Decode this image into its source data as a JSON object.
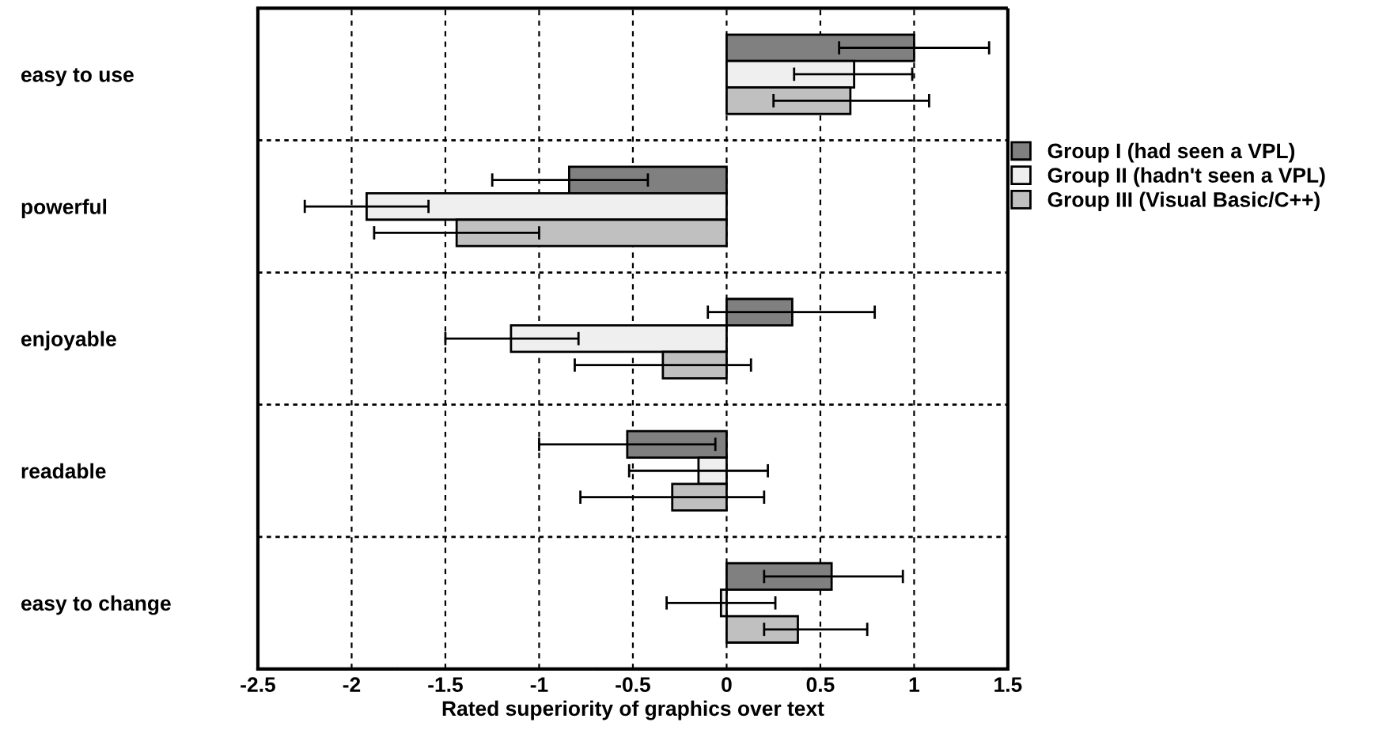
{
  "chart_data": {
    "type": "bar",
    "orientation": "horizontal",
    "xlabel": "Rated superiority of graphics over text",
    "categories": [
      "easy to use",
      "powerful",
      "enjoyable",
      "readable",
      "easy to change"
    ],
    "series": [
      {
        "name": "Group I (had seen a VPL)",
        "color": "#808080",
        "values": [
          1.0,
          -0.84,
          0.35,
          -0.53,
          0.56
        ],
        "errors": [
          [
            0.6,
            1.4
          ],
          [
            -1.25,
            -0.42
          ],
          [
            -0.1,
            0.79
          ],
          [
            -1.0,
            -0.06
          ],
          [
            0.2,
            0.94
          ]
        ]
      },
      {
        "name": "Group II (hadn't seen a VPL)",
        "color": "#efefef",
        "values": [
          0.68,
          -1.92,
          -1.15,
          -0.15,
          -0.03
        ],
        "errors": [
          [
            0.36,
            0.99
          ],
          [
            -2.25,
            -1.59
          ],
          [
            -1.5,
            -0.79
          ],
          [
            -0.52,
            0.22
          ],
          [
            -0.32,
            0.26
          ]
        ]
      },
      {
        "name": "Group III (Visual Basic/C++)",
        "color": "#c0c0c0",
        "values": [
          0.66,
          -1.44,
          -0.34,
          -0.29,
          0.38
        ],
        "errors": [
          [
            0.25,
            1.08
          ],
          [
            -1.88,
            -1.0
          ],
          [
            -0.81,
            0.13
          ],
          [
            -0.78,
            0.2
          ],
          [
            0.2,
            0.75
          ]
        ]
      }
    ],
    "xlim": [
      -2.5,
      1.5
    ],
    "xticks": [
      -2.5,
      -2,
      -1.5,
      -1,
      -0.5,
      0,
      0.5,
      1,
      1.5
    ],
    "grid": true,
    "legend": "right"
  }
}
